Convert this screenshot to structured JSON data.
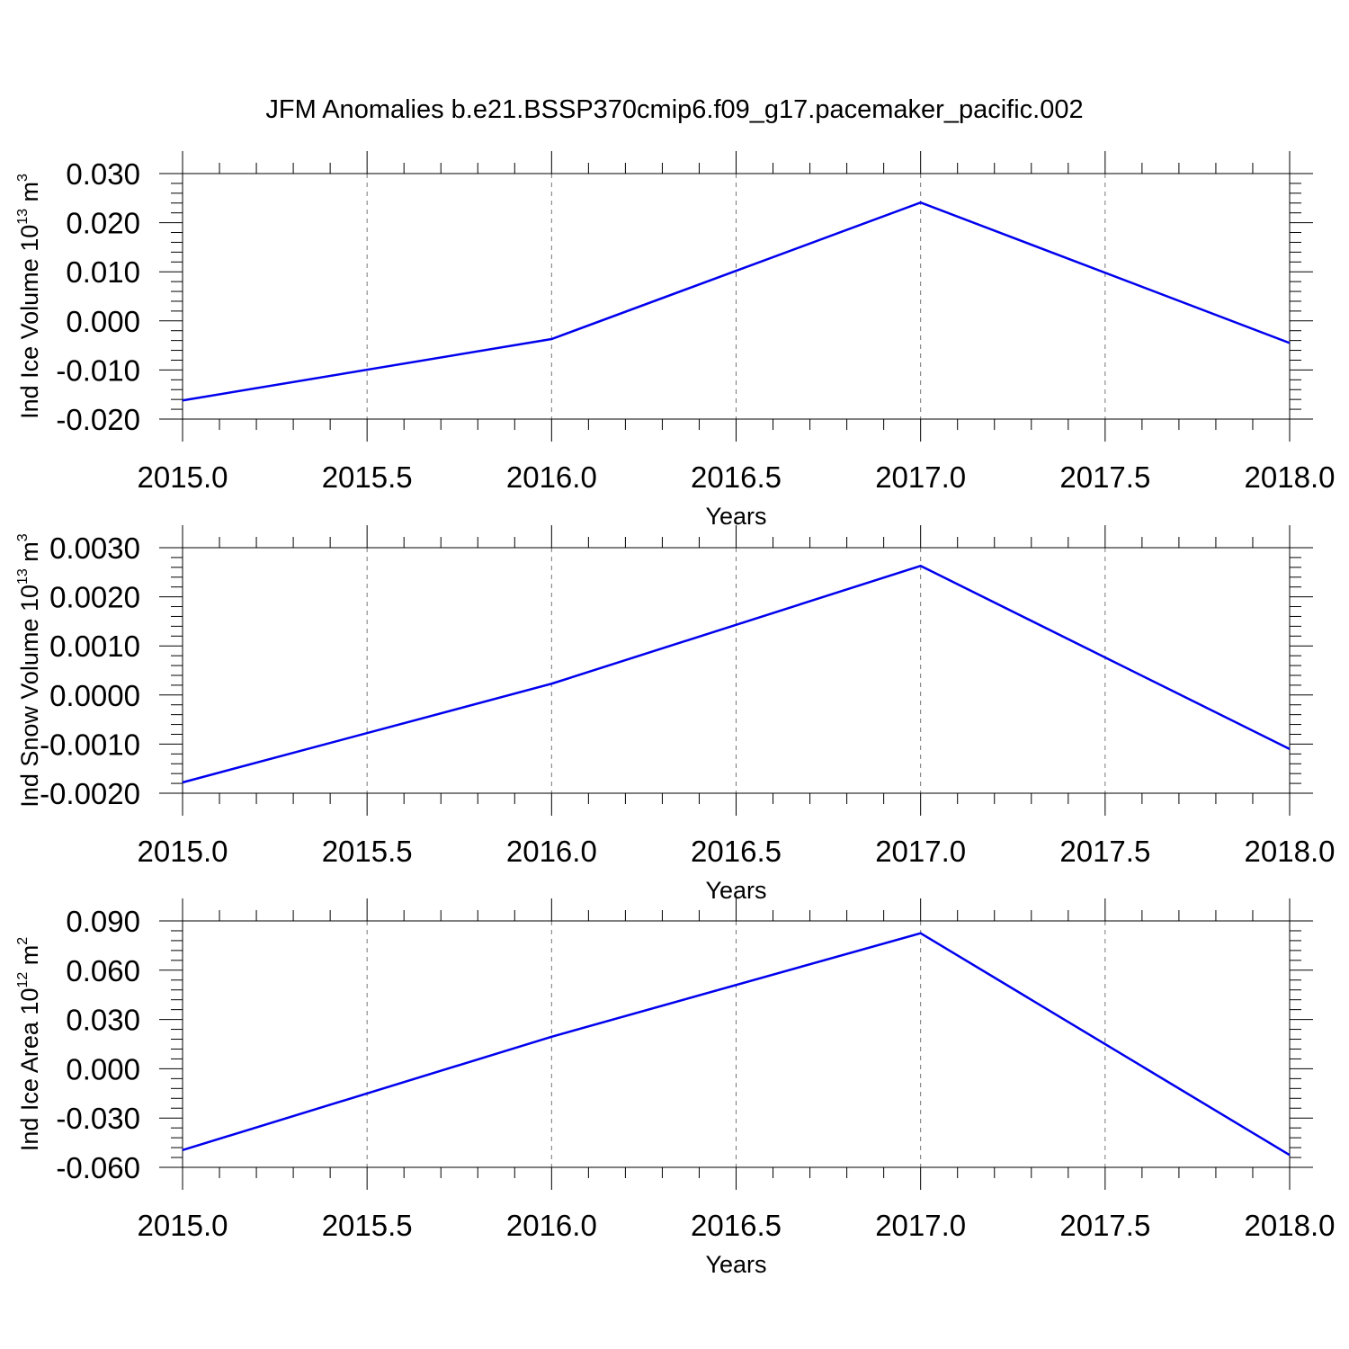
{
  "figure": {
    "title": "JFM Anomalies b.e21.BSSP370cmip6.f09_g17.pacemaker_pacific.002"
  },
  "chart_data": [
    {
      "type": "line",
      "title": "",
      "xlabel": "Years",
      "ylabel": {
        "base": "Ind Ice Volume 10",
        "exp": "13",
        "unit": " m",
        "unit_exp": "3"
      },
      "xlim": [
        2015.0,
        2018.0
      ],
      "ylim": [
        -0.02,
        0.03
      ],
      "xticks": [
        2015.0,
        2015.5,
        2016.0,
        2016.5,
        2017.0,
        2017.5,
        2018.0
      ],
      "xtick_labels": [
        "2015.0",
        "2015.5",
        "2016.0",
        "2016.5",
        "2017.0",
        "2017.5",
        "2018.0"
      ],
      "yticks": [
        0.03,
        0.02,
        0.01,
        0.0,
        -0.01,
        -0.02
      ],
      "ytick_labels": [
        "0.030",
        "0.020",
        "0.010",
        "0.000",
        "-0.010",
        "-0.020"
      ],
      "grid": "x-dashed",
      "series": [
        {
          "color": "#0000ee",
          "x": [
            2015,
            2016,
            2017,
            2018
          ],
          "y": [
            -0.0162,
            -0.0037,
            0.0241,
            -0.0045
          ]
        }
      ]
    },
    {
      "type": "line",
      "title": "",
      "xlabel": "Years",
      "ylabel": {
        "base": "Ind Snow Volume 10",
        "exp": "13",
        "unit": " m",
        "unit_exp": "3"
      },
      "xlim": [
        2015.0,
        2018.0
      ],
      "ylim": [
        -0.002,
        0.003
      ],
      "xticks": [
        2015.0,
        2015.5,
        2016.0,
        2016.5,
        2017.0,
        2017.5,
        2018.0
      ],
      "xtick_labels": [
        "2015.0",
        "2015.5",
        "2016.0",
        "2016.5",
        "2017.0",
        "2017.5",
        "2018.0"
      ],
      "yticks": [
        0.003,
        0.002,
        0.001,
        0.0,
        -0.001,
        -0.002
      ],
      "ytick_labels": [
        "0.0030",
        "0.0020",
        "0.0010",
        "0.0000",
        "-0.0010",
        "-0.0020"
      ],
      "grid": "x-dashed",
      "series": [
        {
          "color": "#0000ee",
          "x": [
            2015,
            2016,
            2017,
            2018
          ],
          "y": [
            -0.00178,
            0.00023,
            0.00263,
            -0.0011
          ]
        }
      ]
    },
    {
      "type": "line",
      "title": "",
      "xlabel": "Years",
      "ylabel": {
        "base": "Ind Ice Area 10",
        "exp": "12",
        "unit": " m",
        "unit_exp": "2"
      },
      "xlim": [
        2015.0,
        2018.0
      ],
      "ylim": [
        -0.06,
        0.09
      ],
      "xticks": [
        2015.0,
        2015.5,
        2016.0,
        2016.5,
        2017.0,
        2017.5,
        2018.0
      ],
      "xtick_labels": [
        "2015.0",
        "2015.5",
        "2016.0",
        "2016.5",
        "2017.0",
        "2017.5",
        "2018.0"
      ],
      "yticks": [
        0.09,
        0.06,
        0.03,
        0.0,
        -0.03,
        -0.06
      ],
      "ytick_labels": [
        "0.090",
        "0.060",
        "0.030",
        "0.000",
        "-0.030",
        "-0.060"
      ],
      "grid": "x-dashed",
      "series": [
        {
          "color": "#0000ee",
          "x": [
            2015,
            2016,
            2017,
            2018
          ],
          "y": [
            -0.0495,
            0.0195,
            0.0825,
            -0.0525
          ]
        }
      ]
    }
  ]
}
